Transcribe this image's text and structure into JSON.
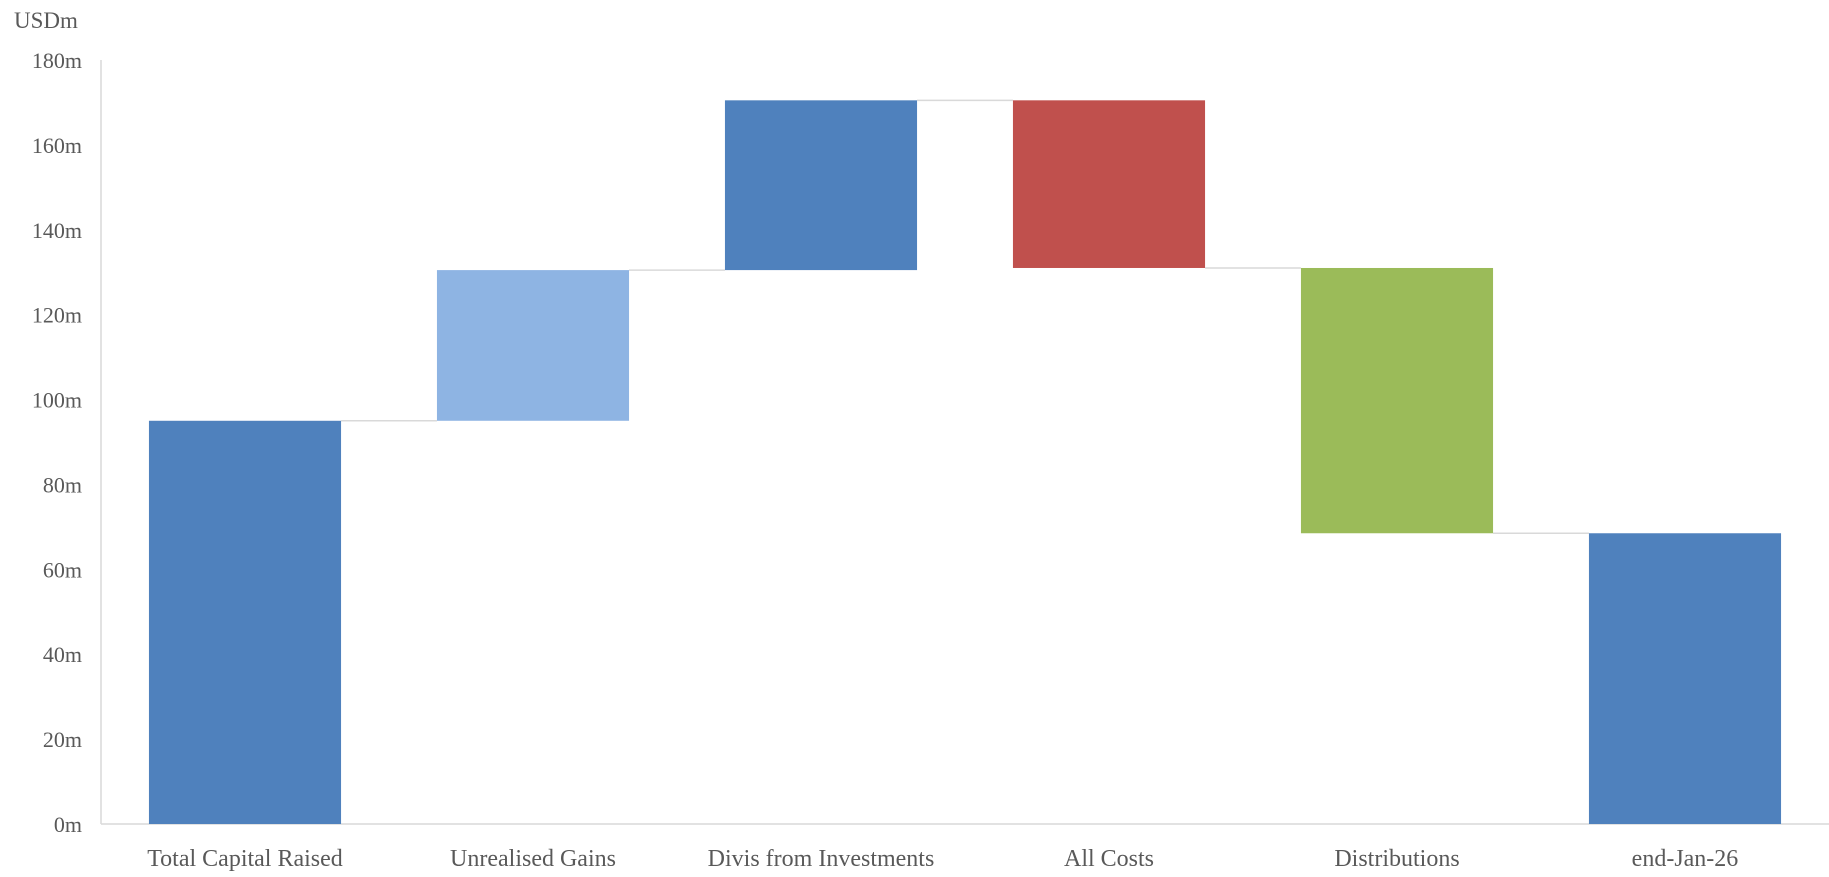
{
  "chart_data": {
    "type": "bar",
    "subtype": "waterfall",
    "unit_label": "USDm",
    "categories": [
      "Total Capital Raised",
      "Unrealised Gains",
      "Divis from Investments",
      "All Costs",
      "Distributions",
      "end-Jan-26"
    ],
    "bars": [
      {
        "category": "Total Capital Raised",
        "kind": "total",
        "start": 0,
        "end": 95,
        "color": "#4F81BD"
      },
      {
        "category": "Unrealised Gains",
        "kind": "increase",
        "start": 95,
        "end": 130.5,
        "color": "#8EB4E3"
      },
      {
        "category": "Divis from Investments",
        "kind": "increase",
        "start": 130.5,
        "end": 170.5,
        "color": "#4F81BD"
      },
      {
        "category": "All Costs",
        "kind": "decrease",
        "start": 170.5,
        "end": 131,
        "color": "#C0504D"
      },
      {
        "category": "Distributions",
        "kind": "decrease",
        "start": 131,
        "end": 68.5,
        "color": "#9BBB59"
      },
      {
        "category": "end-Jan-26",
        "kind": "total",
        "start": 0,
        "end": 68.5,
        "color": "#4F81BD"
      }
    ],
    "ylim": [
      0,
      180
    ],
    "yticks": [
      0,
      20,
      40,
      60,
      80,
      100,
      120,
      140,
      160,
      180
    ],
    "ytick_labels": [
      "0m",
      "20m",
      "40m",
      "60m",
      "80m",
      "100m",
      "120m",
      "140m",
      "160m",
      "180m"
    ],
    "grid": false,
    "connectors": true,
    "legend": "none",
    "colors": {
      "axis": "#D9D9D9",
      "connector": "#D9D9D9",
      "text": "#595959"
    }
  }
}
